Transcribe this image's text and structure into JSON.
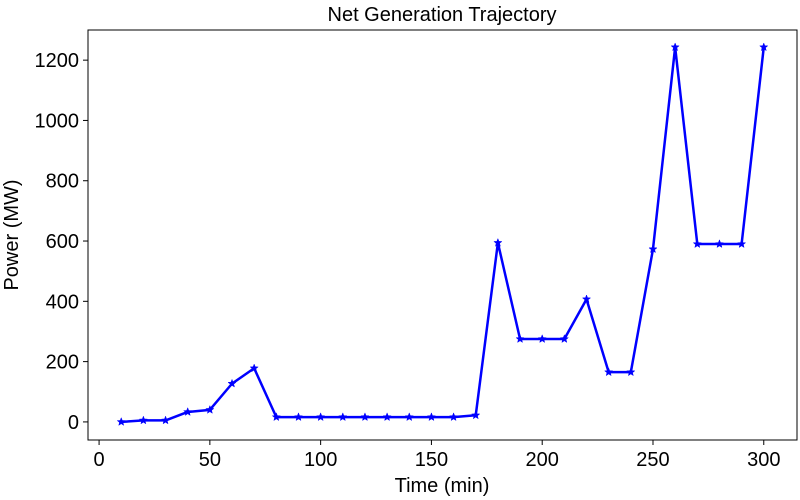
{
  "chart_data": {
    "type": "line",
    "title": "Net Generation Trajectory",
    "xlabel": "Time (min)",
    "ylabel": "Power (MW)",
    "xlim": [
      -5,
      315
    ],
    "ylim": [
      -60,
      1300
    ],
    "xticks": [
      0,
      50,
      100,
      150,
      200,
      250,
      300
    ],
    "yticks": [
      0,
      200,
      400,
      600,
      800,
      1000,
      1200
    ],
    "grid": false,
    "series": [
      {
        "color": "#0000ff",
        "marker": "star",
        "x": [
          10,
          20,
          30,
          40,
          50,
          60,
          70,
          80,
          90,
          100,
          110,
          120,
          130,
          140,
          150,
          160,
          170,
          180,
          190,
          200,
          210,
          220,
          230,
          240,
          250,
          260,
          270,
          280,
          290,
          300
        ],
        "y": [
          0,
          5,
          5,
          33,
          40,
          127,
          178,
          16,
          16,
          16,
          16,
          16,
          16,
          16,
          16,
          16,
          22,
          594,
          275,
          275,
          275,
          407,
          165,
          165,
          573,
          1243,
          590,
          590,
          590,
          1243
        ]
      }
    ]
  }
}
